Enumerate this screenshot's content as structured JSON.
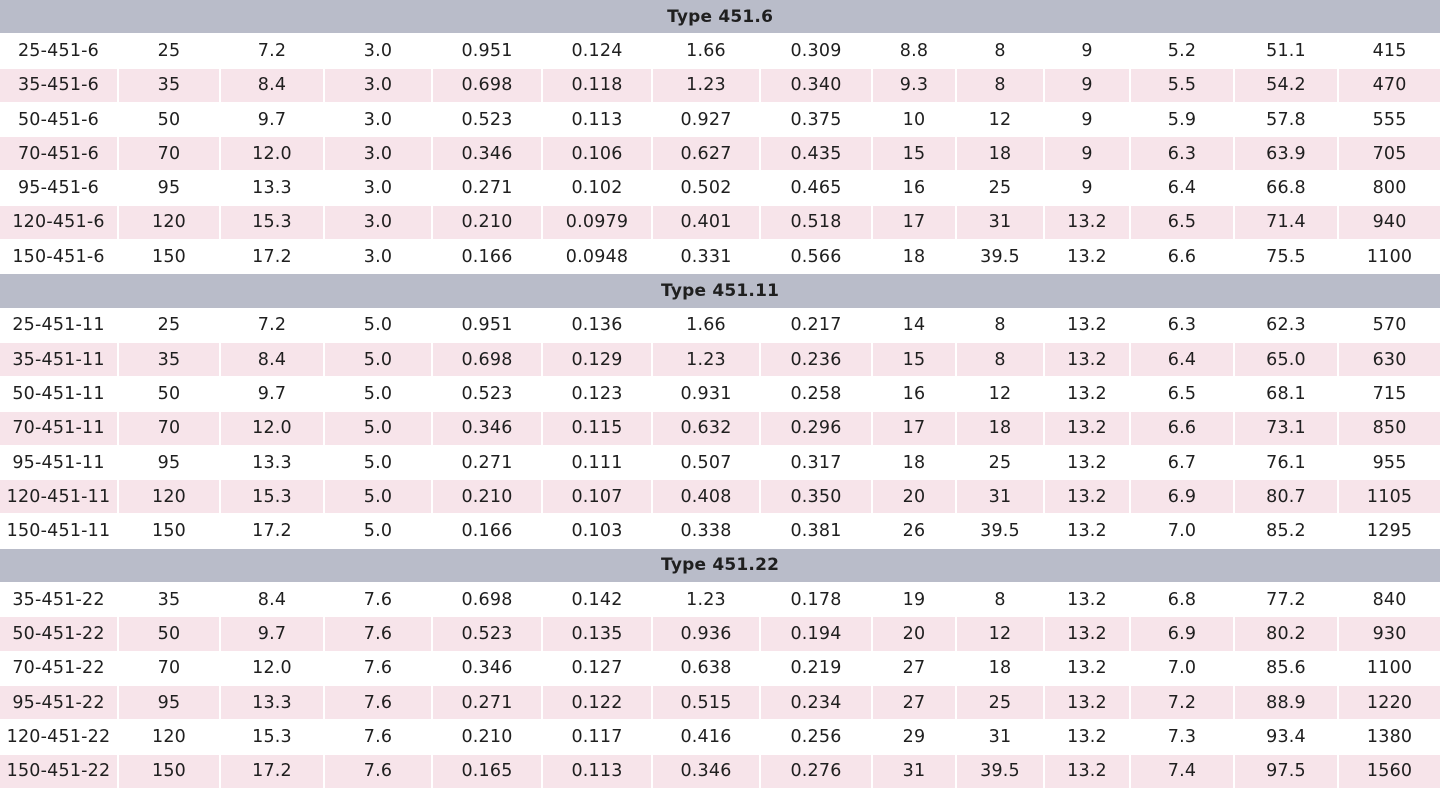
{
  "sections": [
    {
      "title": "Type 451.6",
      "rows": [
        [
          "25-451-6",
          "25",
          "7.2",
          "3.0",
          "0.951",
          "0.124",
          "1.66",
          "0.309",
          "8.8",
          "8",
          "9",
          "5.2",
          "51.1",
          "415"
        ],
        [
          "35-451-6",
          "35",
          "8.4",
          "3.0",
          "0.698",
          "0.118",
          "1.23",
          "0.340",
          "9.3",
          "8",
          "9",
          "5.5",
          "54.2",
          "470"
        ],
        [
          "50-451-6",
          "50",
          "9.7",
          "3.0",
          "0.523",
          "0.113",
          "0.927",
          "0.375",
          "10",
          "12",
          "9",
          "5.9",
          "57.8",
          "555"
        ],
        [
          "70-451-6",
          "70",
          "12.0",
          "3.0",
          "0.346",
          "0.106",
          "0.627",
          "0.435",
          "15",
          "18",
          "9",
          "6.3",
          "63.9",
          "705"
        ],
        [
          "95-451-6",
          "95",
          "13.3",
          "3.0",
          "0.271",
          "0.102",
          "0.502",
          "0.465",
          "16",
          "25",
          "9",
          "6.4",
          "66.8",
          "800"
        ],
        [
          "120-451-6",
          "120",
          "15.3",
          "3.0",
          "0.210",
          "0.0979",
          "0.401",
          "0.518",
          "17",
          "31",
          "13.2",
          "6.5",
          "71.4",
          "940"
        ],
        [
          "150-451-6",
          "150",
          "17.2",
          "3.0",
          "0.166",
          "0.0948",
          "0.331",
          "0.566",
          "18",
          "39.5",
          "13.2",
          "6.6",
          "75.5",
          "1100"
        ]
      ]
    },
    {
      "title": "Type 451.11",
      "rows": [
        [
          "25-451-11",
          "25",
          "7.2",
          "5.0",
          "0.951",
          "0.136",
          "1.66",
          "0.217",
          "14",
          "8",
          "13.2",
          "6.3",
          "62.3",
          "570"
        ],
        [
          "35-451-11",
          "35",
          "8.4",
          "5.0",
          "0.698",
          "0.129",
          "1.23",
          "0.236",
          "15",
          "8",
          "13.2",
          "6.4",
          "65.0",
          "630"
        ],
        [
          "50-451-11",
          "50",
          "9.7",
          "5.0",
          "0.523",
          "0.123",
          "0.931",
          "0.258",
          "16",
          "12",
          "13.2",
          "6.5",
          "68.1",
          "715"
        ],
        [
          "70-451-11",
          "70",
          "12.0",
          "5.0",
          "0.346",
          "0.115",
          "0.632",
          "0.296",
          "17",
          "18",
          "13.2",
          "6.6",
          "73.1",
          "850"
        ],
        [
          "95-451-11",
          "95",
          "13.3",
          "5.0",
          "0.271",
          "0.111",
          "0.507",
          "0.317",
          "18",
          "25",
          "13.2",
          "6.7",
          "76.1",
          "955"
        ],
        [
          "120-451-11",
          "120",
          "15.3",
          "5.0",
          "0.210",
          "0.107",
          "0.408",
          "0.350",
          "20",
          "31",
          "13.2",
          "6.9",
          "80.7",
          "1105"
        ],
        [
          "150-451-11",
          "150",
          "17.2",
          "5.0",
          "0.166",
          "0.103",
          "0.338",
          "0.381",
          "26",
          "39.5",
          "13.2",
          "7.0",
          "85.2",
          "1295"
        ]
      ]
    },
    {
      "title": "Type 451.22",
      "rows": [
        [
          "35-451-22",
          "35",
          "8.4",
          "7.6",
          "0.698",
          "0.142",
          "1.23",
          "0.178",
          "19",
          "8",
          "13.2",
          "6.8",
          "77.2",
          "840"
        ],
        [
          "50-451-22",
          "50",
          "9.7",
          "7.6",
          "0.523",
          "0.135",
          "0.936",
          "0.194",
          "20",
          "12",
          "13.2",
          "6.9",
          "80.2",
          "930"
        ],
        [
          "70-451-22",
          "70",
          "12.0",
          "7.6",
          "0.346",
          "0.127",
          "0.638",
          "0.219",
          "27",
          "18",
          "13.2",
          "7.0",
          "85.6",
          "1100"
        ],
        [
          "95-451-22",
          "95",
          "13.3",
          "7.6",
          "0.271",
          "0.122",
          "0.515",
          "0.234",
          "27",
          "25",
          "13.2",
          "7.2",
          "88.9",
          "1220"
        ],
        [
          "120-451-22",
          "120",
          "15.3",
          "7.6",
          "0.210",
          "0.117",
          "0.416",
          "0.256",
          "29",
          "31",
          "13.2",
          "7.3",
          "93.4",
          "1380"
        ],
        [
          "150-451-22",
          "150",
          "17.2",
          "7.6",
          "0.165",
          "0.113",
          "0.346",
          "0.276",
          "31",
          "39.5",
          "13.2",
          "7.4",
          "97.5",
          "1560"
        ]
      ]
    }
  ],
  "colors": {
    "section_header_bg": "#b9bcc9",
    "row_odd_bg": "#ffffff",
    "row_even_bg": "#f7e4ea",
    "text": "#1f1f1f"
  }
}
